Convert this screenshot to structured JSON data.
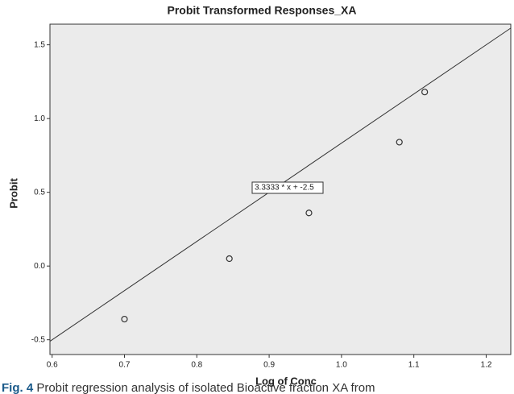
{
  "chart_data": {
    "type": "scatter",
    "title": "Probit Transformed Responses_XA",
    "x_label": "Log of Conc",
    "y_label": "Probit",
    "x": [
      0.7,
      0.845,
      0.955,
      1.08,
      1.115
    ],
    "values": [
      -0.36,
      0.05,
      0.36,
      0.84,
      1.18
    ],
    "color": "#333333",
    "fit": {
      "slope": 3.3333,
      "intercept": -2.5,
      "label": "3.3333 * x + -2.5"
    },
    "xlim": [
      0.597,
      1.234
    ],
    "ylim": [
      -0.6,
      1.64
    ],
    "xticks": [
      0.6,
      0.7,
      0.8,
      0.9,
      {
        "value": 1,
        "label": "1.0"
      },
      1.1,
      1.2
    ],
    "yticks": [
      -0.5,
      {
        "value": 0,
        "label": "0.0"
      },
      0.5,
      {
        "value": 1,
        "label": "1.0"
      },
      1.5
    ],
    "grid": false
  },
  "caption": {
    "label": "Fig. 4",
    "text": "Probit regression analysis of isolated Bioactive fraction XA from"
  }
}
